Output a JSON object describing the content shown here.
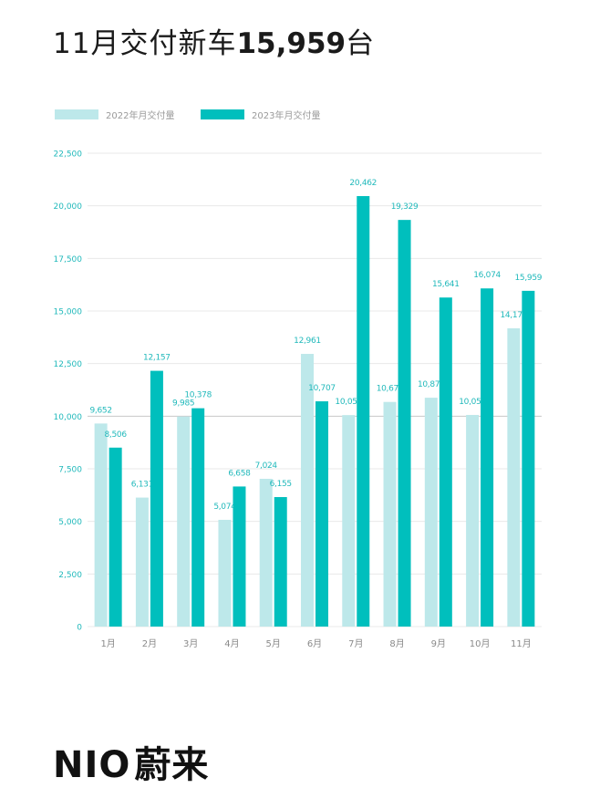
{
  "headline": {
    "prefix": "11月交付新车",
    "number": "15,959",
    "suffix": "台"
  },
  "logo": {
    "latin": "NIO",
    "chinese": "蔚来"
  },
  "colors": {
    "series_2022": "#bde8ea",
    "series_2023": "#00bfbd",
    "axis_text": "#21b9bb",
    "grid": "#e8e8e8",
    "highlight_grid": "#c8c8c8"
  },
  "chart_data": {
    "type": "bar",
    "categories": [
      "1月",
      "2月",
      "3月",
      "4月",
      "5月",
      "6月",
      "7月",
      "8月",
      "9月",
      "10月",
      "11月"
    ],
    "series": [
      {
        "name": "2022年月交付量",
        "values": [
          9652,
          6131,
          9985,
          5074,
          7024,
          12961,
          10052,
          10677,
          10878,
          10059,
          14178
        ],
        "labels": [
          "9,652",
          "6,131",
          "9,985",
          "5,074",
          "7,024",
          "12,961",
          "10,052",
          "10,677",
          "10,878",
          "10,059",
          "14,178"
        ]
      },
      {
        "name": "2023年月交付量",
        "values": [
          8506,
          12157,
          10378,
          6658,
          6155,
          10707,
          20462,
          19329,
          15641,
          16074,
          15959
        ],
        "labels": [
          "8,506",
          "12,157",
          "10,378",
          "6,658",
          "6,155",
          "10,707",
          "20,462",
          "19,329",
          "15,641",
          "16,074",
          "15,959"
        ]
      }
    ],
    "ylim": [
      0,
      22500
    ],
    "yticks": [
      0,
      2500,
      5000,
      7500,
      10000,
      12500,
      15000,
      17500,
      20000,
      22500
    ],
    "ytick_labels": [
      "0",
      "2,500",
      "5,000",
      "7,500",
      "10,000",
      "12,500",
      "15,000",
      "17,500",
      "20,000",
      "22,500"
    ],
    "highlight_gridline": 10000,
    "grid": true,
    "legend": "top-left"
  }
}
